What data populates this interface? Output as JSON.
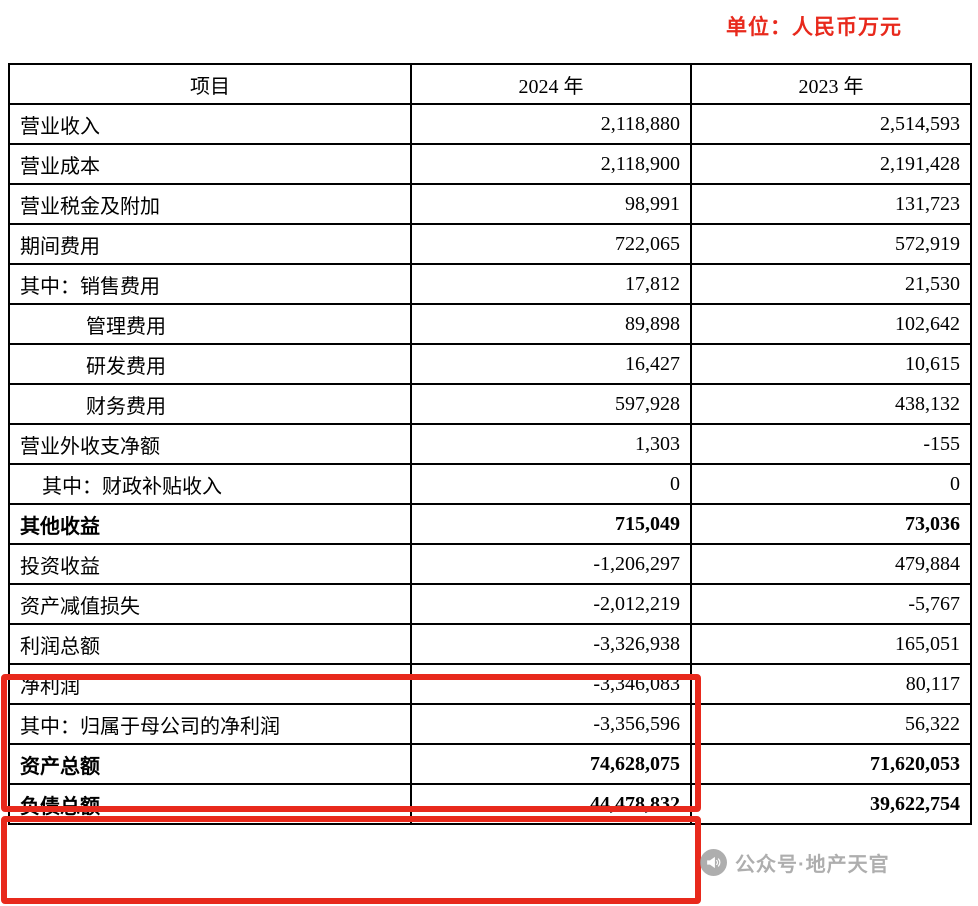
{
  "page": {
    "unit_label": "单位：人民币万元"
  },
  "colors": {
    "accent_red": "#e8291c",
    "watermark_gray": "#9b9b9b",
    "border_black": "#000000"
  },
  "table": {
    "headers": [
      "项目",
      "2024 年",
      "2023 年"
    ],
    "rows": [
      {
        "label": "营业收入",
        "y2024": "2,118,880",
        "y2023": "2,514,593",
        "indent": 0
      },
      {
        "label": "营业成本",
        "y2024": "2,118,900",
        "y2023": "2,191,428",
        "indent": 0
      },
      {
        "label": "营业税金及附加",
        "y2024": "98,991",
        "y2023": "131,723",
        "indent": 0
      },
      {
        "label": "期间费用",
        "y2024": "722,065",
        "y2023": "572,919",
        "indent": 0
      },
      {
        "label": "其中：销售费用",
        "y2024": "17,812",
        "y2023": "21,530",
        "indent": 0
      },
      {
        "label": "管理费用",
        "y2024": "89,898",
        "y2023": "102,642",
        "indent": 1
      },
      {
        "label": "研发费用",
        "y2024": "16,427",
        "y2023": "10,615",
        "indent": 1
      },
      {
        "label": "财务费用",
        "y2024": "597,928",
        "y2023": "438,132",
        "indent": 1
      },
      {
        "label": "营业外收支净额",
        "y2024": "1,303",
        "y2023": "-155",
        "indent": 0
      },
      {
        "label": "其中：财政补贴收入",
        "y2024": "0",
        "y2023": "0",
        "indent": 0.5
      },
      {
        "label": "其他收益",
        "y2024": "715,049",
        "y2023": "73,036",
        "indent": 0,
        "bold": true
      },
      {
        "label": "投资收益",
        "y2024": "-1,206,297",
        "y2023": "479,884",
        "indent": 0
      },
      {
        "label": "资产减值损失",
        "y2024": "-2,012,219",
        "y2023": "-5,767",
        "indent": 0
      },
      {
        "label": "利润总额",
        "y2024": "-3,326,938",
        "y2023": "165,051",
        "indent": 0
      },
      {
        "label": "净利润",
        "y2024": "-3,346,083",
        "y2023": "80,117",
        "indent": 0
      },
      {
        "label": "其中：归属于母公司的净利润",
        "y2024": "-3,356,596",
        "y2023": "56,322",
        "indent": 0
      },
      {
        "label": "资产总额",
        "y2024": "74,628,075",
        "y2023": "71,620,053",
        "indent": 0,
        "bold": true
      },
      {
        "label": "负债总额",
        "y2024": "44,478,832",
        "y2023": "39,622,754",
        "indent": 0,
        "bold": true
      }
    ]
  },
  "annotations": {
    "highlight_boxes": [
      "profit-rows",
      "balance-rows"
    ],
    "highlight_color": "#e8291c"
  },
  "watermark": {
    "text": "公众号·地产天官",
    "icon": "megaphone-icon"
  }
}
